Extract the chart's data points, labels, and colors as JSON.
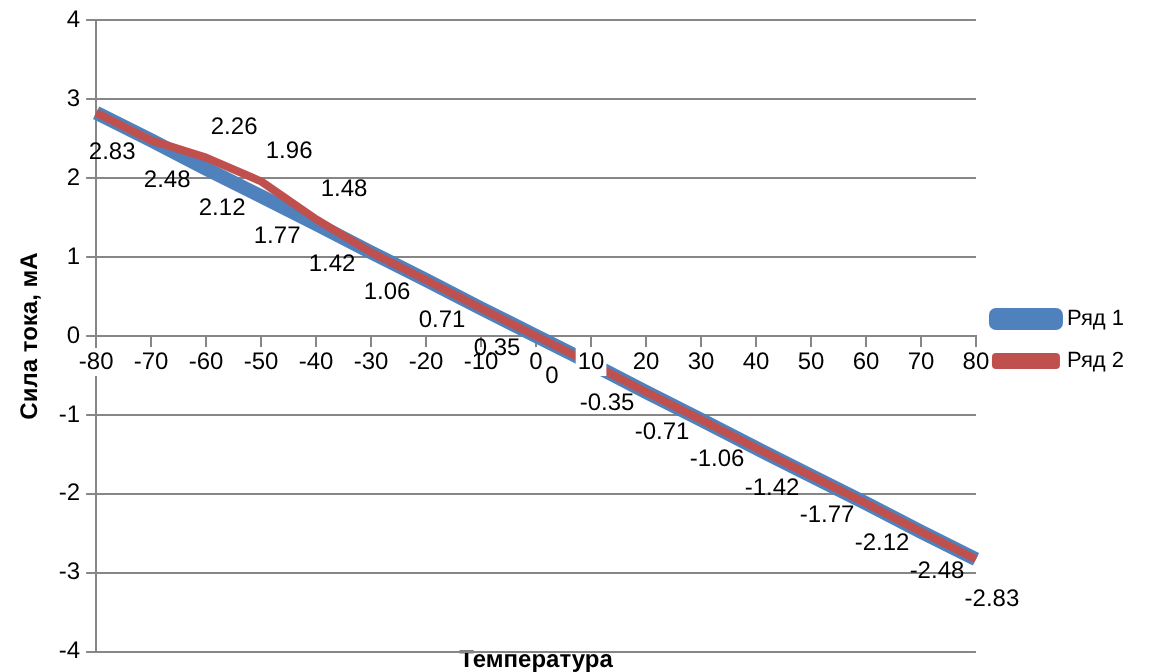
{
  "chart_data": {
    "type": "line",
    "xlabel": "Температура",
    "ylabel": "Сила тока, мА",
    "x": [
      -80,
      -70,
      -60,
      -50,
      -40,
      -30,
      -20,
      -10,
      0,
      10,
      20,
      30,
      40,
      50,
      60,
      70,
      80
    ],
    "series": [
      {
        "name": "Ряд 1",
        "color": "#4f81bd",
        "values": [
          2.83,
          2.48,
          2.12,
          1.77,
          1.42,
          1.06,
          0.71,
          0.35,
          0,
          -0.35,
          -0.71,
          -1.06,
          -1.42,
          -1.77,
          -2.12,
          -2.48,
          -2.83
        ],
        "value_labels": [
          "2.83",
          "2.48",
          "2.12",
          "1.77",
          "1.42",
          "1.06",
          "0.71",
          "0.35",
          "0",
          "-0.35",
          "-0.71",
          "-1.06",
          "-1.42",
          "-1.77",
          "-2.12",
          "-2.48",
          "-2.83"
        ]
      },
      {
        "name": "Ряд 2",
        "color": "#c0504d",
        "values": [
          2.83,
          2.48,
          2.26,
          1.96,
          1.48,
          1.06,
          0.71,
          0.35,
          0,
          -0.35,
          -0.71,
          -1.06,
          -1.42,
          -1.77,
          -2.12,
          -2.48,
          -2.83
        ],
        "value_labels": [
          null,
          null,
          "2.26",
          "1.96",
          "1.48",
          null,
          null,
          null,
          null,
          null,
          null,
          null,
          null,
          null,
          null,
          null,
          null
        ]
      }
    ],
    "xlim": [
      -80,
      80
    ],
    "xticks": [
      -80,
      -70,
      -60,
      -50,
      -40,
      -30,
      -20,
      -10,
      0,
      10,
      20,
      30,
      40,
      50,
      60,
      70,
      80
    ],
    "ylim": [
      -4,
      4
    ],
    "yticks": [
      -4,
      -3,
      -2,
      -1,
      0,
      1,
      2,
      3,
      4
    ],
    "grid": "y",
    "legend": "right",
    "marker": "none",
    "line_style": "solid"
  }
}
